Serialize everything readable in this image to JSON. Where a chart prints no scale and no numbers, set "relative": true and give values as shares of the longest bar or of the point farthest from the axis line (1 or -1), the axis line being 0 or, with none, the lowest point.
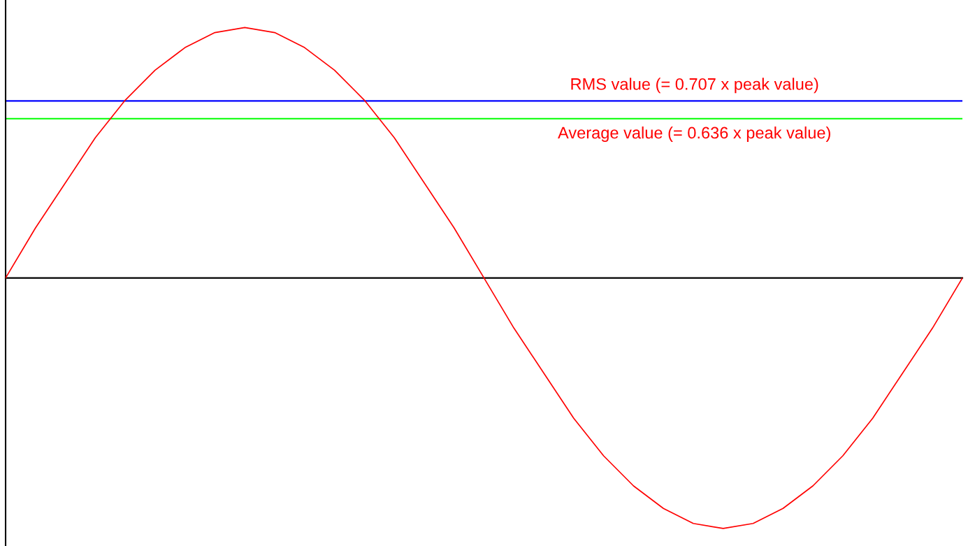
{
  "chart_data": {
    "type": "line",
    "relative": true,
    "legend": false,
    "marker": "none",
    "line_style": "solid",
    "categories": [
      null,
      null,
      null,
      null,
      null,
      null,
      null,
      null,
      null,
      null,
      null,
      null,
      null,
      null,
      null,
      null,
      null,
      null,
      null,
      null,
      null,
      null,
      null,
      null,
      null,
      null,
      null,
      null,
      null,
      null,
      null,
      null,
      null
    ],
    "series": [
      {
        "color": "#ff0000",
        "values": [
          0,
          0.2,
          0.38,
          0.56,
          0.71,
          0.83,
          0.92,
          0.98,
          1,
          0.98,
          0.92,
          0.83,
          0.71,
          0.56,
          0.38,
          0.2,
          0,
          -0.2,
          -0.38,
          -0.56,
          -0.71,
          -0.83,
          -0.92,
          -0.98,
          -1,
          -0.98,
          -0.92,
          -0.83,
          -0.71,
          -0.56,
          -0.38,
          -0.2,
          0
        ]
      }
    ],
    "ref_lines": [
      {
        "axis": "y",
        "value": 0.707,
        "label": "RMS value (= 0.707 x peak value)",
        "color": "#0000ff",
        "line_style": "solid"
      },
      {
        "axis": "y",
        "value": 0.636,
        "label": "Average value (= 0.636 x peak value)",
        "color": "#00ff00",
        "line_style": "solid"
      }
    ]
  }
}
